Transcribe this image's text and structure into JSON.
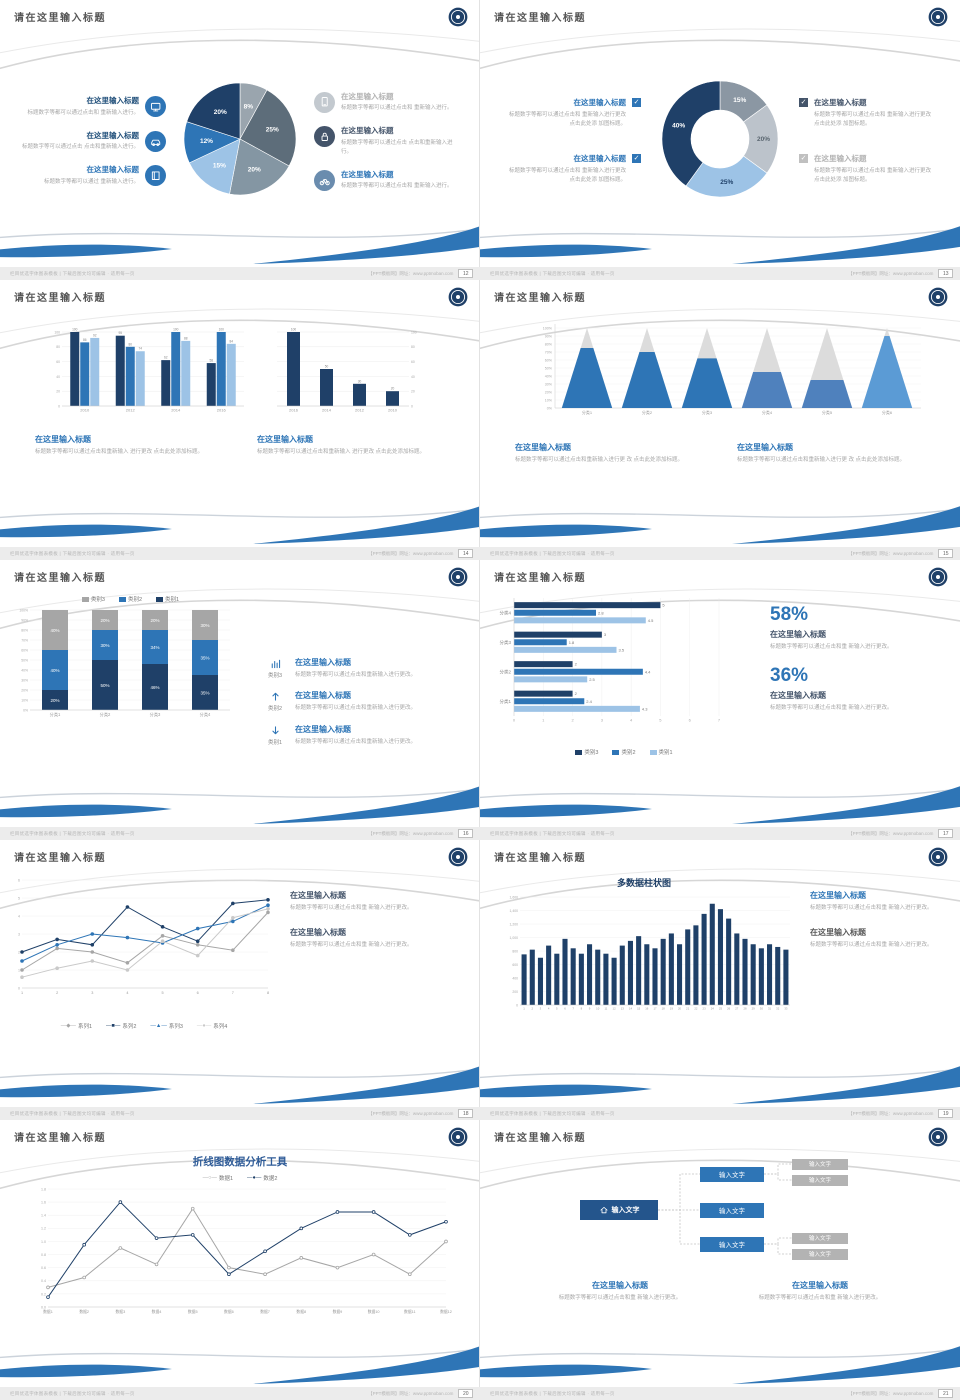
{
  "common": {
    "slide_title": "请在这里输入标题",
    "footer_left": "栏目优选字体图表模板 | 下载后图文均可编辑 · 适用每一页",
    "footer_right": "【PPT模板网】网址：www.pptmoban.com"
  },
  "slides": {
    "s12": {
      "page": "12",
      "chart": 0,
      "left": [
        {
          "icon": "monitor",
          "icon_color": "#2e75b6",
          "heading": "在这里输入标题",
          "heading_color": "#1f4e79",
          "body": "标题数字等都可以通过点击和 重新输入进行。"
        },
        {
          "icon": "car",
          "icon_color": "#2e75b6",
          "heading": "在这里输入标题",
          "heading_color": "#1f4e79",
          "body": "标题数字等可以通过点击 点击和重新输入进行。"
        },
        {
          "icon": "book",
          "icon_color": "#2e75b6",
          "heading": "在这里输入标题",
          "heading_color": "#2e75b6",
          "body": "标题数字等都可以通过 重新输入进行。"
        }
      ],
      "right": [
        {
          "icon": "phone",
          "icon_color": "#c3c9cf",
          "heading": "在这里输入标题",
          "heading_color": "#b3b3b3",
          "body": "标题数字等都可以通过点击和 重新输入进行。"
        },
        {
          "icon": "lock",
          "icon_color": "#44546a",
          "heading": "在这里输入标题",
          "heading_color": "#44546a",
          "body": "标题数字等都可以通过点击 点击和重新输入进行。"
        },
        {
          "icon": "bike",
          "icon_color": "#6a8cae",
          "heading": "在这里输入标题",
          "heading_color": "#2e75b6",
          "body": "标题数字等都可以通过点击和 重新输入进行。"
        }
      ]
    },
    "s13": {
      "page": "13",
      "chart": 1,
      "left": [
        {
          "check_color": "#2e75b6",
          "heading": "在这里输入标题",
          "heading_color": "#2e75b6",
          "body": "标题数字等都可以通过点击和 重新输入进行更改 点击此处添 加图标题。"
        },
        {
          "check_color": "#2e75b6",
          "heading": "在这里输入标题",
          "heading_color": "#2e75b6",
          "body": "标题数字等都可以通过点击和 重新输入进行更改 点击此处添 加图标题。"
        }
      ],
      "right": [
        {
          "check_color": "#44546a",
          "heading": "在这里输入标题",
          "heading_color": "#44546a",
          "body": "标题数字等都可以通过点击和 重新输入进行更改 点击此处添 加图标题。"
        },
        {
          "check_color": "#c0c0c0",
          "heading": "在这里输入标题",
          "heading_color": "#b3b3b3",
          "body": "标题数字等都可以通过点击和 重新输入进行更改 点击此处添 加图标题。"
        }
      ]
    },
    "s14": {
      "page": "14",
      "chartA": 2,
      "chartB": 3,
      "blocks": [
        {
          "heading": "在这里输入标题",
          "heading_color": "#2e75b6",
          "body": "标题数字等都可以通过点击和重新输入 进行更改 点击此处添加标题。"
        },
        {
          "heading": "在这里输入标题",
          "heading_color": "#2e75b6",
          "body": "标题数字等都可以通过点击和重新输入 进行更改 点击此处添加标题。"
        }
      ]
    },
    "s15": {
      "page": "15",
      "chart": 4,
      "blocks": [
        {
          "heading": "在这里输入标题",
          "heading_color": "#2e75b6",
          "body": "标题数字等都可以通过点击和重新输入进行更 改 点击此处添加标题。"
        },
        {
          "heading": "在这里输入标题",
          "heading_color": "#2e75b6",
          "body": "标题数字等都可以通过点击和重新输入进行更 改 点击此处添加标题。"
        }
      ]
    },
    "s16": {
      "page": "16",
      "chart": 5,
      "legend": [
        {
          "label": "类别3",
          "color": "#a6a6a6"
        },
        {
          "label": "类别2",
          "color": "#2e75b6"
        },
        {
          "label": "类别1",
          "color": "#1f4068"
        }
      ],
      "items": [
        {
          "icon": "chart",
          "tag": "类别3",
          "heading": "在这里输入标题",
          "heading_color": "#2e75b6",
          "body": "标题数字等都可以通过点击和重新输入进行更改。"
        },
        {
          "icon": "up",
          "tag": "类别2",
          "heading": "在这里输入标题",
          "heading_color": "#2e75b6",
          "body": "标题数字等都可以通过点击和重新输入进行更改。"
        },
        {
          "icon": "down",
          "tag": "类别1",
          "heading": "在这里输入标题",
          "heading_color": "#2e75b6",
          "body": "标题数字等都可以通过点击和重新输入进行更改。"
        }
      ]
    },
    "s17": {
      "page": "17",
      "chart": 6,
      "legend": [
        {
          "label": "类别3",
          "color": "#1f4068"
        },
        {
          "label": "类别2",
          "color": "#2e75b6"
        },
        {
          "label": "类别1",
          "color": "#9dc3e6"
        }
      ],
      "stats": [
        {
          "big": "58%",
          "heading": "在这里输入标题",
          "body": "标题数字等都可以通过点击和重 新输入进行更改。"
        },
        {
          "big": "36%",
          "heading": "在这里输入标题",
          "body": "标题数字等都可以通过点击和重 新输入进行更改。"
        }
      ]
    },
    "s18": {
      "page": "18",
      "chart": 7,
      "blocks": [
        {
          "heading": "在这里输入标题",
          "heading_color": "#44546a",
          "body": "标题数字等都可以通过点击和重 新输入进行更改。"
        },
        {
          "heading": "在这里输入标题",
          "heading_color": "#44546a",
          "body": "标题数字等都可以通过点击和重 新输入进行更改。"
        }
      ]
    },
    "s19": {
      "page": "19",
      "chart": 8,
      "blocks": [
        {
          "heading": "在这里输入标题",
          "heading_color": "#2e75b6",
          "body": "标题数字等都可以通过点击和重 新输入进行更改。"
        },
        {
          "heading": "在这里输入标题",
          "heading_color": "#595959",
          "body": "标题数字等都可以通过点击和重 新输入进行更改。"
        }
      ]
    },
    "s20": {
      "page": "20",
      "chart": 9,
      "legend": [
        {
          "label": "数据1",
          "color": "#a6a6a6",
          "marker": "○"
        },
        {
          "label": "数据2",
          "color": "#1f4068",
          "marker": "●"
        }
      ]
    },
    "s21": {
      "page": "21",
      "root_label": "输入文字",
      "mid_labels": [
        "输入文字",
        "输入文字",
        "输入文字"
      ],
      "gray_labels": [
        "输入文字",
        "输入文字",
        "输入文字",
        "输入文字"
      ],
      "blocks": [
        {
          "heading": "在这里输入标题",
          "heading_color": "#2e75b6",
          "body": "标题数字等都可以通过点击和重 新输入进行更改。"
        },
        {
          "heading": "在这里输入标题",
          "heading_color": "#2e75b6",
          "body": "标题数字等都可以通过点击和重 新输入进行更改。"
        }
      ]
    }
  },
  "chart_data": [
    {
      "id": "pie-12",
      "type": "pie",
      "slices": [
        {
          "label": "8%",
          "value": 8,
          "color": "#9aa5ae"
        },
        {
          "label": "25%",
          "value": 25,
          "color": "#5d6d7a"
        },
        {
          "label": "20%",
          "value": 20,
          "color": "#8496a3"
        },
        {
          "label": "15%",
          "value": 15,
          "color": "#9dc3e6"
        },
        {
          "label": "12%",
          "value": 12,
          "color": "#2e75b6"
        },
        {
          "label": "20%",
          "value": 20,
          "color": "#1f4068"
        }
      ]
    },
    {
      "id": "donut-13",
      "type": "pie",
      "donut": true,
      "slices": [
        {
          "label": "15%",
          "value": 15,
          "color": "#8b97a3"
        },
        {
          "label": "20%",
          "value": 20,
          "color": "#bcc3cb",
          "label_color": "#5a6670"
        },
        {
          "label": "25%",
          "value": 25,
          "color": "#9dc3e6",
          "label_color": "#1f4068"
        },
        {
          "label": "40%",
          "value": 40,
          "color": "#1f4068"
        }
      ]
    },
    {
      "id": "bars-14a",
      "type": "bar",
      "categories": [
        "2010",
        "2012",
        "2014",
        "2016"
      ],
      "ymax": 100,
      "ticks": 5,
      "series": [
        {
          "name": "系列1",
          "color": "#1f4068",
          "values": [
            100,
            95,
            62,
            58
          ]
        },
        {
          "name": "系列2",
          "color": "#2e75b6",
          "values": [
            86,
            80,
            100,
            100
          ]
        },
        {
          "name": "系列3",
          "color": "#9dc3e6",
          "values": [
            92,
            74,
            88,
            84
          ]
        }
      ]
    },
    {
      "id": "bars-14b",
      "type": "bar",
      "categories": [
        "2016",
        "2014",
        "2012",
        "2010"
      ],
      "ymax": 100,
      "ticks": 5,
      "series": [
        {
          "name": "系列1",
          "color": "#1f4068",
          "values": [
            100,
            50,
            30,
            20
          ]
        }
      ]
    },
    {
      "id": "cones-15",
      "type": "cone",
      "categories": [
        "分类1",
        "分类2",
        "分类3",
        "分类4",
        "分类5",
        "分类6"
      ],
      "values": [
        75,
        70,
        62,
        45,
        35,
        90
      ],
      "ymax": 100,
      "colors": [
        "#2e75b6",
        "#2e75b6",
        "#2e75b6",
        "#4f81bd",
        "#4f81bd",
        "#5b9bd5"
      ]
    },
    {
      "id": "stacked-16",
      "type": "stacked-bar",
      "categories": [
        "分类1",
        "分类2",
        "分类3",
        "分类4"
      ],
      "ymax": 100,
      "ticks": 10,
      "series": [
        {
          "name": "类别1",
          "color": "#1f4068",
          "values": [
            20,
            50,
            46,
            35
          ]
        },
        {
          "name": "类别2",
          "color": "#2e75b6",
          "values": [
            40,
            30,
            34,
            35
          ]
        },
        {
          "name": "类别3",
          "color": "#a6a6a6",
          "values": [
            40,
            20,
            20,
            30
          ]
        }
      ]
    },
    {
      "id": "hbars-17",
      "type": "hbar",
      "categories": [
        "分类1",
        "分类2",
        "分类3",
        "分类4"
      ],
      "xmax": 7,
      "series": [
        {
          "name": "类别3",
          "color": "#1f4068",
          "values": [
            2,
            2,
            3,
            5
          ]
        },
        {
          "name": "类别2",
          "color": "#2e75b6",
          "values": [
            2.4,
            4.4,
            1.8,
            2.8
          ]
        },
        {
          "name": "类别1",
          "color": "#9dc3e6",
          "values": [
            4.3,
            2.5,
            3.5,
            4.5
          ]
        }
      ]
    },
    {
      "id": "lines-18",
      "type": "line",
      "x": [
        "1",
        "2",
        "3",
        "4",
        "5",
        "6",
        "7",
        "8"
      ],
      "ymax": 6,
      "ticks": 6,
      "series": [
        {
          "name": "系列1",
          "color": "#a6a6a6",
          "marker": "◆",
          "values": [
            1.0,
            2.2,
            2.0,
            1.4,
            2.9,
            2.4,
            2.1,
            4.2
          ]
        },
        {
          "name": "系列2",
          "color": "#1f4068",
          "marker": "■",
          "values": [
            2.0,
            2.7,
            2.4,
            4.5,
            3.4,
            2.6,
            4.7,
            4.9
          ]
        },
        {
          "name": "系列3",
          "color": "#2e75b6",
          "marker": "▲",
          "values": [
            1.5,
            2.4,
            3.0,
            2.8,
            2.5,
            3.3,
            3.7,
            4.6
          ]
        },
        {
          "name": "系列4",
          "color": "#c9c9c9",
          "marker": "●",
          "values": [
            0.6,
            1.1,
            1.5,
            1.0,
            2.6,
            1.8,
            3.9,
            4.4
          ]
        }
      ]
    },
    {
      "id": "cols-19",
      "type": "bar",
      "title": "多数据柱状图",
      "ymax": 1600,
      "ticks": 8,
      "color": "#1f4068",
      "values": [
        750,
        820,
        700,
        880,
        760,
        980,
        840,
        760,
        900,
        820,
        760,
        700,
        880,
        950,
        1020,
        900,
        840,
        980,
        1060,
        900,
        1120,
        1180,
        1350,
        1500,
        1420,
        1280,
        1060,
        980,
        900,
        840,
        900,
        860,
        820
      ]
    },
    {
      "id": "lines-20",
      "type": "line",
      "title": "折线图数据分析工具",
      "ymax": 1.8,
      "ticks": 9,
      "x": [
        "数据1",
        "数据2",
        "数据3",
        "数据4",
        "数据5",
        "数据6",
        "数据7",
        "数据8",
        "数据9",
        "数据10",
        "数据11",
        "数据12"
      ],
      "series": [
        {
          "name": "数据1",
          "color": "#a6a6a6",
          "values": [
            0.3,
            0.45,
            0.9,
            0.65,
            1.5,
            0.6,
            0.5,
            0.75,
            0.6,
            0.8,
            0.5,
            1.0
          ]
        },
        {
          "name": "数据2",
          "color": "#1f4068",
          "values": [
            0.15,
            0.95,
            1.6,
            1.05,
            1.1,
            0.5,
            0.85,
            1.2,
            1.45,
            1.45,
            1.1,
            1.3
          ]
        }
      ]
    }
  ]
}
